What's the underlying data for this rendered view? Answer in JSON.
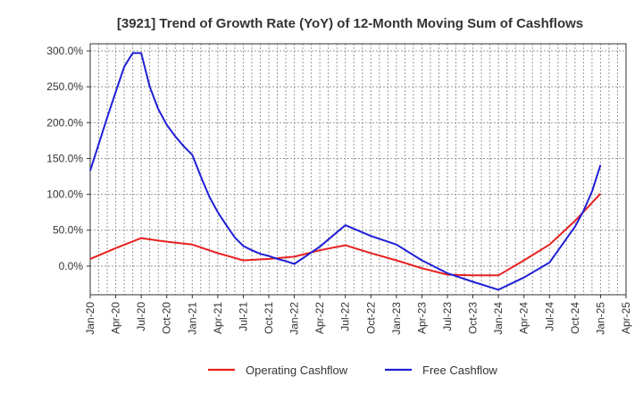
{
  "chart_data": {
    "type": "line",
    "title": "[3921]  Trend of Growth Rate (YoY) of 12-Month Moving Sum of Cashflows",
    "x_tick_labels": [
      "Jan-20",
      "Apr-20",
      "Jul-20",
      "Oct-20",
      "Jan-21",
      "Apr-21",
      "Jul-21",
      "Oct-21",
      "Jan-22",
      "Apr-22",
      "Jul-22",
      "Oct-22",
      "Jan-23",
      "Apr-23",
      "Jul-23",
      "Oct-23",
      "Jan-24",
      "Apr-24",
      "Jul-24",
      "Oct-24",
      "Jan-25",
      "Apr-25"
    ],
    "y_ticks": [
      0,
      50,
      100,
      150,
      200,
      250,
      300
    ],
    "y_tick_labels": [
      "0.0%",
      "50.0%",
      "100.0%",
      "150.0%",
      "200.0%",
      "250.0%",
      "300.0%"
    ],
    "xlim": [
      "2020-01",
      "2025-04"
    ],
    "ylim": [
      -40,
      310
    ],
    "grid": true,
    "legend_position": "bottom-center",
    "series": [
      {
        "name": "Operating Cashflow",
        "color": "#e8201f",
        "x": [
          "2020-01",
          "2020-04",
          "2020-07",
          "2020-10",
          "2021-01",
          "2021-04",
          "2021-07",
          "2021-10",
          "2022-01",
          "2022-04",
          "2022-07",
          "2022-10",
          "2023-01",
          "2023-04",
          "2023-07",
          "2023-10",
          "2024-01",
          "2024-04",
          "2024-07",
          "2024-10",
          "2025-01"
        ],
        "values": [
          10,
          25,
          39,
          34,
          30,
          18,
          8,
          10,
          13,
          22,
          29,
          18,
          8,
          -3,
          -12,
          -13,
          -13,
          8,
          30,
          63,
          101
        ]
      },
      {
        "name": "Free Cashflow",
        "color": "#1f1fd6",
        "x": [
          "2020-01",
          "2020-02",
          "2020-03",
          "2020-04",
          "2020-05",
          "2020-06",
          "2020-07",
          "2020-08",
          "2020-09",
          "2020-10",
          "2020-11",
          "2020-12",
          "2021-01",
          "2021-02",
          "2021-03",
          "2021-04",
          "2021-05",
          "2021-06",
          "2021-07",
          "2021-08",
          "2021-09",
          "2021-10",
          "2021-11",
          "2021-12",
          "2022-01",
          "2022-04",
          "2022-07",
          "2022-10",
          "2023-01",
          "2023-04",
          "2023-07",
          "2023-10",
          "2024-01",
          "2024-04",
          "2024-07",
          "2024-10",
          "2024-11",
          "2024-12",
          "2025-01"
        ],
        "values": [
          133,
          170,
          207,
          243,
          278,
          297,
          297,
          250,
          219,
          197,
          181,
          167,
          155,
          125,
          97,
          75,
          57,
          40,
          28,
          22,
          17,
          14,
          10,
          7,
          3,
          27,
          57,
          42,
          30,
          8,
          -10,
          -22,
          -33,
          -16,
          5,
          55,
          77,
          104,
          141
        ]
      }
    ]
  }
}
